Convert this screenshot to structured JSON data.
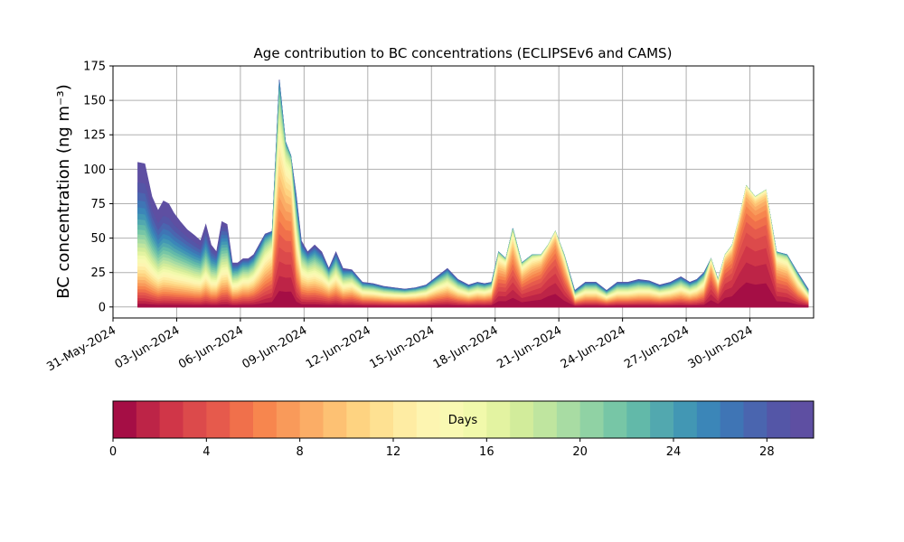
{
  "chart_data": {
    "type": "area",
    "title": "Age contribution to BC concentrations (ECLIPSEv6 and CAMS)",
    "ylabel": "BC concentration (ng m⁻³)",
    "xlabel": "",
    "ylim": [
      -8,
      175
    ],
    "y_ticks": [
      0,
      25,
      50,
      75,
      100,
      125,
      150,
      175
    ],
    "x_ticks": [
      "31-May-2024",
      "03-Jun-2024",
      "06-Jun-2024",
      "09-Jun-2024",
      "12-Jun-2024",
      "15-Jun-2024",
      "18-Jun-2024",
      "21-Jun-2024",
      "24-Jun-2024",
      "27-Jun-2024",
      "30-Jun-2024"
    ],
    "x_range": [
      "2024-05-31",
      "2024-07-03"
    ],
    "grid": true,
    "stacked_by": "age (days)",
    "total_concentration": {
      "x": [
        "2024-06-01",
        "2024-06-01",
        "2024-06-01",
        "2024-06-02",
        "2024-06-02",
        "2024-06-02",
        "2024-06-02",
        "2024-06-03",
        "2024-06-03",
        "2024-06-03",
        "2024-06-04",
        "2024-06-04",
        "2024-06-04",
        "2024-06-04",
        "2024-06-05",
        "2024-06-05",
        "2024-06-05",
        "2024-06-05",
        "2024-06-06",
        "2024-06-06",
        "2024-06-06",
        "2024-06-06",
        "2024-06-07",
        "2024-06-07",
        "2024-06-07",
        "2024-06-08",
        "2024-06-08",
        "2024-06-08",
        "2024-06-08",
        "2024-06-09",
        "2024-06-09",
        "2024-06-09",
        "2024-06-10",
        "2024-06-10",
        "2024-06-10",
        "2024-06-11",
        "2024-06-11",
        "2024-06-12",
        "2024-06-12",
        "2024-06-13",
        "2024-06-13",
        "2024-06-14",
        "2024-06-14",
        "2024-06-15",
        "2024-06-15",
        "2024-06-16",
        "2024-06-16",
        "2024-06-17",
        "2024-06-17",
        "2024-06-17",
        "2024-06-18",
        "2024-06-18",
        "2024-06-18",
        "2024-06-19",
        "2024-06-19",
        "2024-06-20",
        "2024-06-20",
        "2024-06-20",
        "2024-06-21",
        "2024-06-21",
        "2024-06-22",
        "2024-06-22",
        "2024-06-23",
        "2024-06-23",
        "2024-06-24",
        "2024-06-24",
        "2024-06-25",
        "2024-06-25",
        "2024-06-26",
        "2024-06-26",
        "2024-06-27",
        "2024-06-27",
        "2024-06-27",
        "2024-06-28",
        "2024-06-28",
        "2024-06-28",
        "2024-06-29",
        "2024-06-29",
        "2024-06-29",
        "2024-06-30",
        "2024-06-30",
        "2024-07-01",
        "2024-07-01",
        "2024-07-02",
        "2024-07-02"
      ],
      "y": [
        105,
        104,
        80,
        70,
        77,
        75,
        68,
        62,
        56,
        52,
        48,
        60,
        45,
        40,
        62,
        60,
        32,
        32,
        35,
        35,
        38,
        45,
        53,
        55,
        165,
        120,
        110,
        82,
        48,
        40,
        45,
        40,
        28,
        40,
        28,
        27,
        18,
        17,
        15,
        14,
        13,
        14,
        16,
        22,
        28,
        20,
        16,
        18,
        17,
        18,
        40,
        35,
        57,
        32,
        38,
        38,
        45,
        55,
        38,
        12,
        18,
        18,
        12,
        18,
        18,
        20,
        19,
        16,
        18,
        22,
        18,
        20,
        25,
        35,
        20,
        38,
        45,
        65,
        88,
        80,
        85,
        40,
        38,
        25,
        13
      ],
      "ten_day_fraction": [
        0.3,
        0.3,
        0.32,
        0.3,
        0.3,
        0.3,
        0.32,
        0.34,
        0.36,
        0.36,
        0.38,
        0.38,
        0.4,
        0.45,
        0.42,
        0.45,
        0.5,
        0.52,
        0.55,
        0.55,
        0.57,
        0.6,
        0.65,
        0.7,
        0.72,
        0.78,
        0.8,
        0.6,
        0.55,
        0.58,
        0.55,
        0.55,
        0.6,
        0.55,
        0.55,
        0.6,
        0.6,
        0.6,
        0.6,
        0.6,
        0.62,
        0.62,
        0.62,
        0.62,
        0.6,
        0.6,
        0.6,
        0.62,
        0.62,
        0.65,
        0.8,
        0.82,
        0.82,
        0.8,
        0.82,
        0.85,
        0.88,
        0.88,
        0.82,
        0.6,
        0.6,
        0.6,
        0.6,
        0.58,
        0.58,
        0.58,
        0.6,
        0.6,
        0.6,
        0.6,
        0.6,
        0.62,
        0.65,
        0.85,
        0.8,
        0.88,
        0.88,
        0.9,
        0.9,
        0.9,
        0.9,
        0.8,
        0.78,
        0.7,
        0.6
      ]
    },
    "colorbar": {
      "label": "Days",
      "min": 0,
      "max": 30,
      "step": 1,
      "ticks": [
        0,
        4,
        8,
        12,
        16,
        20,
        24,
        28
      ],
      "colors": [
        "#a50e45",
        "#bd2447",
        "#d03648",
        "#dc4a4b",
        "#e65a4c",
        "#f0704b",
        "#f7864e",
        "#f99a5a",
        "#fbad66",
        "#fdc173",
        "#fed381",
        "#fee192",
        "#feeca3",
        "#fdf5b1",
        "#f9f9b2",
        "#f1f9ab",
        "#e3f3a1",
        "#d2ec9b",
        "#bfe59f",
        "#a8dca3",
        "#90d2a4",
        "#77c6a6",
        "#62b9a9",
        "#52a8af",
        "#4297b4",
        "#3b86b8",
        "#3f75b5",
        "#4a65af",
        "#5456a7",
        "#5e4fa2"
      ]
    }
  }
}
